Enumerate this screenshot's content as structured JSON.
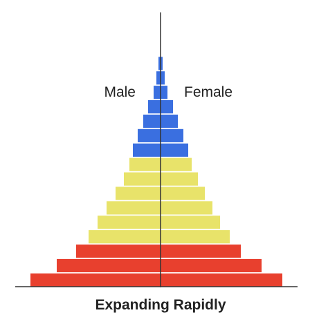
{
  "chart_data": {
    "type": "bar",
    "orientation": "horizontal",
    "subtype": "population-pyramid",
    "title": "Expanding Rapidly",
    "labels": {
      "left": "Male",
      "right": "Female"
    },
    "grid": false,
    "colors": {
      "young": "#e8402e",
      "working": "#e8e36a",
      "elderly": "#3a6fe0",
      "divider": "#333333"
    },
    "cohorts": [
      {
        "group": "young",
        "male": 188,
        "female": 176
      },
      {
        "group": "young",
        "male": 150,
        "female": 146
      },
      {
        "group": "young",
        "male": 122,
        "female": 116
      },
      {
        "group": "working",
        "male": 104,
        "female": 100
      },
      {
        "group": "working",
        "male": 91,
        "female": 86
      },
      {
        "group": "working",
        "male": 78,
        "female": 75
      },
      {
        "group": "working",
        "male": 65,
        "female": 64
      },
      {
        "group": "working",
        "male": 53,
        "female": 54
      },
      {
        "group": "working",
        "male": 45,
        "female": 45
      },
      {
        "group": "elderly",
        "male": 40,
        "female": 40
      },
      {
        "group": "elderly",
        "male": 33,
        "female": 33
      },
      {
        "group": "elderly",
        "male": 25,
        "female": 25
      },
      {
        "group": "elderly",
        "male": 18,
        "female": 18
      },
      {
        "group": "elderly",
        "male": 10,
        "female": 10
      },
      {
        "group": "elderly",
        "male": 6,
        "female": 6
      },
      {
        "group": "elderly",
        "male": 3,
        "female": 3
      }
    ]
  }
}
